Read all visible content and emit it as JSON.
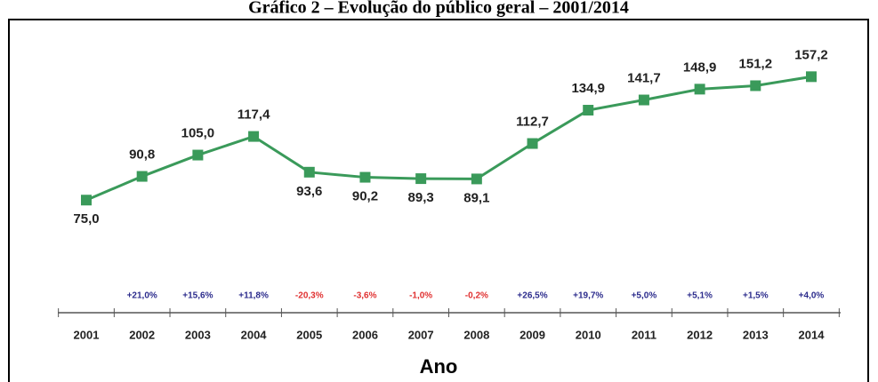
{
  "chart_data": {
    "type": "line",
    "title": "Gráfico 2 – Evolução do público geral – 2001/2014",
    "x_label": "Ano",
    "categories": [
      "2001",
      "2002",
      "2003",
      "2004",
      "2005",
      "2006",
      "2007",
      "2008",
      "2009",
      "2010",
      "2011",
      "2012",
      "2013",
      "2014"
    ],
    "series": [
      {
        "color": "#3a9a5a",
        "values": [
          75.0,
          90.8,
          105.0,
          117.4,
          93.6,
          90.2,
          89.3,
          89.1,
          112.7,
          134.9,
          141.7,
          148.9,
          151.2,
          157.2
        ],
        "value_labels": [
          "75,0",
          "90,8",
          "105,0",
          "117,4",
          "93,6",
          "90,2",
          "89,3",
          "89,1",
          "112,7",
          "134,9",
          "141,7",
          "148,9",
          "151,2",
          "157,2"
        ]
      }
    ],
    "changes": [
      null,
      {
        "text": "+21,0%",
        "color": "#2b2b8c"
      },
      {
        "text": "+15,6%",
        "color": "#2b2b8c"
      },
      {
        "text": "+11,8%",
        "color": "#2b2b8c"
      },
      {
        "text": "-20,3%",
        "color": "#e03030"
      },
      {
        "text": "-3,6%",
        "color": "#e03030"
      },
      {
        "text": "-1,0%",
        "color": "#e03030"
      },
      {
        "text": "-0,2%",
        "color": "#e03030"
      },
      {
        "text": "+26,5%",
        "color": "#2b2b8c"
      },
      {
        "text": "+19,7%",
        "color": "#2b2b8c"
      },
      {
        "text": "+5,0%",
        "color": "#2b2b8c"
      },
      {
        "text": "+5,1%",
        "color": "#2b2b8c"
      },
      {
        "text": "+1,5%",
        "color": "#2b2b8c"
      },
      {
        "text": "+4,0%",
        "color": "#2b2b8c"
      }
    ],
    "ylim": [
      0,
      200
    ]
  }
}
